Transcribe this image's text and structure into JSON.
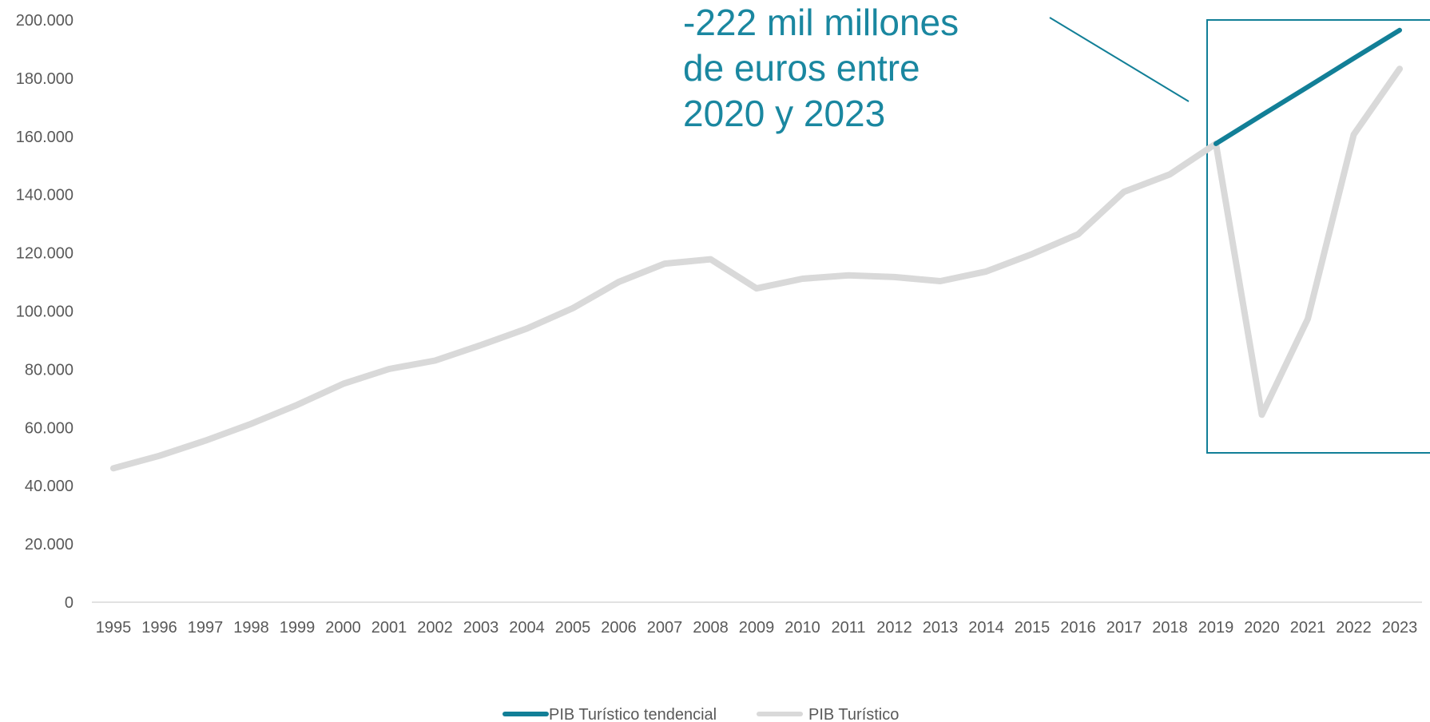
{
  "chart_data": {
    "type": "line",
    "title": "",
    "xlabel": "",
    "ylabel": "",
    "ylim": [
      0,
      200000
    ],
    "yticks": [
      0,
      20000,
      40000,
      60000,
      80000,
      100000,
      120000,
      140000,
      160000,
      180000,
      200000
    ],
    "ytick_labels": [
      "0",
      "20.000",
      "40.000",
      "60.000",
      "80.000",
      "100.000",
      "120.000",
      "140.000",
      "160.000",
      "180.000",
      "200.000"
    ],
    "categories": [
      "1995",
      "1996",
      "1997",
      "1998",
      "1999",
      "2000",
      "2001",
      "2002",
      "2003",
      "2004",
      "2005",
      "2006",
      "2007",
      "2008",
      "2009",
      "2010",
      "2011",
      "2012",
      "2013",
      "2014",
      "2015",
      "2016",
      "2017",
      "2018",
      "2019",
      "2020",
      "2021",
      "2022",
      "2023"
    ],
    "grid": false,
    "legend_position": "bottom",
    "series": [
      {
        "name": "PIB Turístico tendencial",
        "color": "#127f97",
        "values": [
          null,
          null,
          null,
          null,
          null,
          null,
          null,
          null,
          null,
          null,
          null,
          null,
          null,
          null,
          null,
          null,
          null,
          null,
          null,
          null,
          null,
          null,
          null,
          null,
          157500,
          167300,
          177000,
          186800,
          196500
        ]
      },
      {
        "name": "PIB Turístico",
        "color": "#d9d9d9",
        "values": [
          46000,
          50300,
          55500,
          61300,
          67800,
          75000,
          80100,
          83000,
          88300,
          94000,
          101000,
          110000,
          116300,
          117800,
          107800,
          111100,
          112300,
          111700,
          110300,
          113600,
          119600,
          126400,
          141000,
          147000,
          157500,
          64400,
          97300,
          160600,
          183200
        ]
      }
    ],
    "annotations": [
      {
        "lines": [
          "-222 mil millones",
          "de euros entre",
          "2020 y 2023"
        ],
        "color": "#1a87a0"
      }
    ],
    "highlight_box": {
      "from": "2019",
      "to": "2023",
      "color": "#127f97"
    }
  }
}
